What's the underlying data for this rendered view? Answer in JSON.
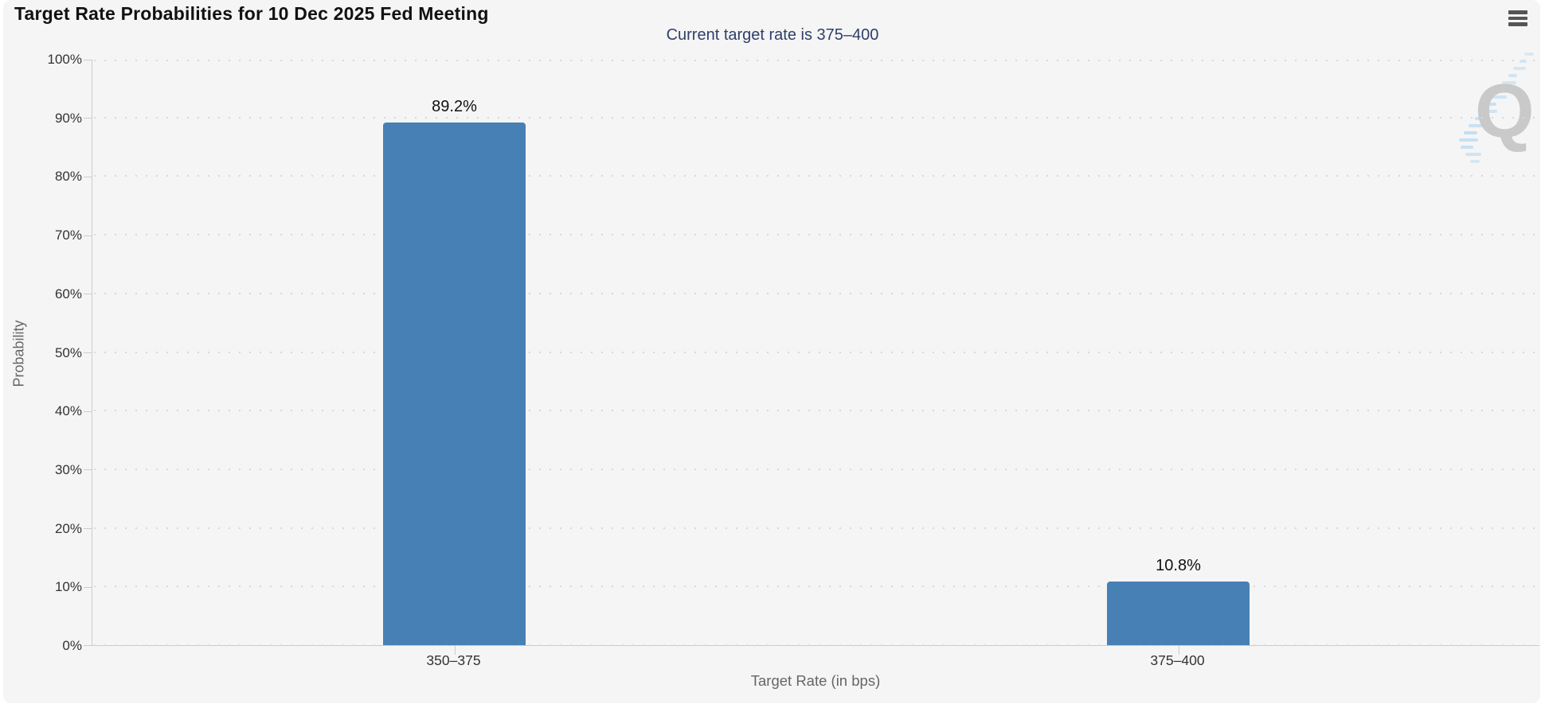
{
  "chart_data": {
    "type": "bar",
    "title": "Target Rate Probabilities for 10 Dec 2025 Fed Meeting",
    "subtitle": "Current target rate is 375–400",
    "categories": [
      "350–375",
      "375–400"
    ],
    "values": [
      89.2,
      10.8
    ],
    "data_labels": [
      "89.2%",
      "10.8%"
    ],
    "xlabel": "Target Rate (in bps)",
    "ylabel": "Probability",
    "ylim": [
      0,
      100
    ],
    "ytick_step": 10,
    "ytick_labels": [
      "0%",
      "10%",
      "20%",
      "30%",
      "40%",
      "50%",
      "60%",
      "70%",
      "80%",
      "90%",
      "100%"
    ],
    "grid": true,
    "legend": false,
    "bar_color": "#4780b4"
  },
  "watermark": {
    "letter": "Q"
  },
  "colors": {
    "panel_bg": "#f5f5f5",
    "bar": "#4780b4",
    "subtitle_text": "#2f3f68",
    "axis_line": "#cccccc",
    "grid_dot": "#d8d8d8",
    "tick_label": "#333333",
    "axis_title": "#666666",
    "data_label": "#111111",
    "menu_icon": "#555555",
    "watermark_letter": "#c9c9c9",
    "watermark_accent": "#b7d9f3"
  }
}
